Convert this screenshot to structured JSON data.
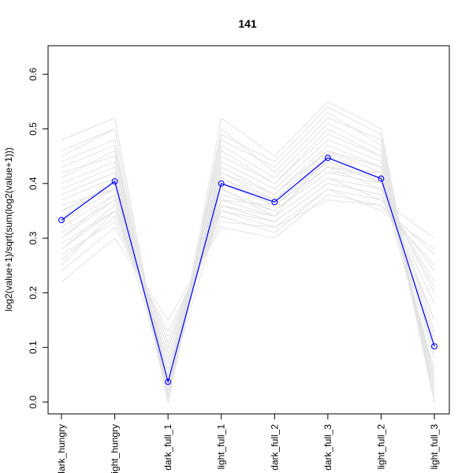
{
  "chart_data": {
    "type": "line",
    "title": "141",
    "xlabel": "",
    "ylabel": "log2(value+1)/sqrt(sum(log2(value+1)))",
    "categories": [
      "dark_hungry",
      "light_hungry",
      "dark_full_1",
      "light_full_1",
      "dark_full_2",
      "dark_full_3",
      "light_full_2",
      "light_full_3"
    ],
    "yticks": [
      "0.0",
      "0.1",
      "0.2",
      "0.3",
      "0.4",
      "0.5",
      "0.6"
    ],
    "ylim": [
      -0.02,
      0.65
    ],
    "grid": false,
    "highlight_series": {
      "values": [
        0.333,
        0.404,
        0.037,
        0.4,
        0.366,
        0.447,
        0.409,
        0.102
      ],
      "color": "#0000ff",
      "marker": "open-circle"
    },
    "background_series": {
      "color": "#e3e3e3",
      "description_count": 60,
      "values": [
        [
          0.35,
          0.4,
          0.03,
          0.41,
          0.37,
          0.44,
          0.4,
          0.05
        ],
        [
          0.3,
          0.38,
          0.05,
          0.38,
          0.35,
          0.42,
          0.42,
          0.1
        ],
        [
          0.42,
          0.45,
          0.0,
          0.45,
          0.4,
          0.5,
          0.45,
          0.0
        ],
        [
          0.25,
          0.35,
          0.1,
          0.35,
          0.33,
          0.4,
          0.38,
          0.15
        ],
        [
          0.38,
          0.42,
          0.02,
          0.43,
          0.38,
          0.47,
          0.43,
          0.03
        ],
        [
          0.28,
          0.36,
          0.08,
          0.37,
          0.36,
          0.43,
          0.39,
          0.2
        ],
        [
          0.45,
          0.5,
          0.0,
          0.5,
          0.42,
          0.52,
          0.48,
          0.0
        ],
        [
          0.33,
          0.41,
          0.04,
          0.39,
          0.34,
          0.45,
          0.41,
          0.08
        ],
        [
          0.22,
          0.3,
          0.15,
          0.32,
          0.3,
          0.38,
          0.36,
          0.25
        ],
        [
          0.4,
          0.44,
          0.01,
          0.44,
          0.39,
          0.48,
          0.44,
          0.02
        ],
        [
          0.36,
          0.39,
          0.06,
          0.4,
          0.37,
          0.46,
          0.4,
          0.12
        ],
        [
          0.31,
          0.37,
          0.03,
          0.36,
          0.34,
          0.41,
          0.37,
          0.3
        ],
        [
          0.48,
          0.52,
          0.0,
          0.52,
          0.45,
          0.55,
          0.5,
          0.0
        ],
        [
          0.27,
          0.33,
          0.12,
          0.34,
          0.31,
          0.39,
          0.35,
          0.28
        ],
        [
          0.34,
          0.4,
          0.05,
          0.41,
          0.36,
          0.43,
          0.42,
          0.09
        ],
        [
          0.39,
          0.43,
          0.02,
          0.42,
          0.38,
          0.46,
          0.43,
          0.04
        ],
        [
          0.29,
          0.35,
          0.09,
          0.36,
          0.33,
          0.4,
          0.38,
          0.22
        ],
        [
          0.43,
          0.47,
          0.0,
          0.47,
          0.41,
          0.51,
          0.46,
          0.01
        ],
        [
          0.32,
          0.38,
          0.07,
          0.38,
          0.35,
          0.42,
          0.4,
          0.15
        ],
        [
          0.37,
          0.41,
          0.03,
          0.42,
          0.37,
          0.45,
          0.41,
          0.06
        ],
        [
          0.24,
          0.32,
          0.13,
          0.33,
          0.32,
          0.37,
          0.36,
          0.27
        ],
        [
          0.41,
          0.46,
          0.01,
          0.46,
          0.4,
          0.49,
          0.45,
          0.03
        ],
        [
          0.35,
          0.39,
          0.04,
          0.4,
          0.36,
          0.44,
          0.4,
          0.11
        ],
        [
          0.26,
          0.34,
          0.11,
          0.35,
          0.32,
          0.39,
          0.37,
          0.24
        ],
        [
          0.44,
          0.48,
          0.0,
          0.48,
          0.43,
          0.53,
          0.47,
          0.0
        ],
        [
          0.3,
          0.37,
          0.06,
          0.37,
          0.34,
          0.41,
          0.39,
          0.18
        ],
        [
          0.38,
          0.42,
          0.02,
          0.43,
          0.38,
          0.46,
          0.42,
          0.05
        ],
        [
          0.33,
          0.39,
          0.05,
          0.39,
          0.35,
          0.43,
          0.41,
          0.13
        ],
        [
          0.46,
          0.5,
          0.0,
          0.49,
          0.44,
          0.54,
          0.49,
          0.0
        ],
        [
          0.28,
          0.35,
          0.1,
          0.36,
          0.33,
          0.4,
          0.38,
          0.21
        ]
      ]
    }
  }
}
